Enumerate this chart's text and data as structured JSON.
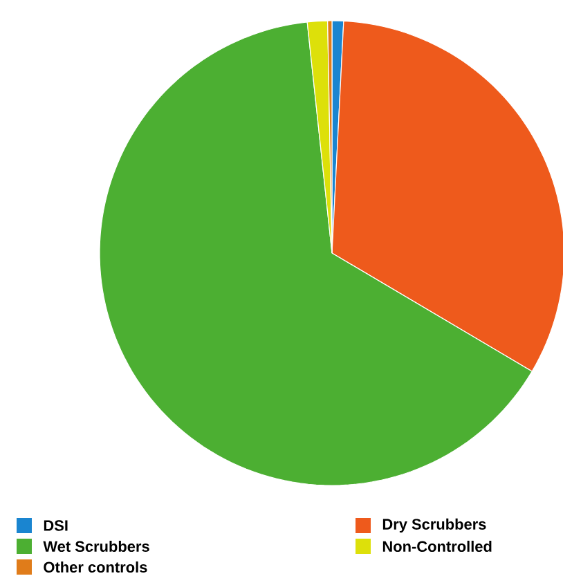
{
  "chart_data": {
    "type": "pie",
    "categories": [
      "DSI",
      "Dry Scrubbers",
      "Wet Scrubbers",
      "Non-Controlled",
      "Other controls"
    ],
    "values": [
      0.8,
      32.7,
      64.8,
      1.4,
      0.3
    ],
    "colors": [
      "#1a85d0",
      "#ee5a1c",
      "#4caf32",
      "#dde00a",
      "#e07c1a"
    ],
    "legend": "bottom"
  }
}
